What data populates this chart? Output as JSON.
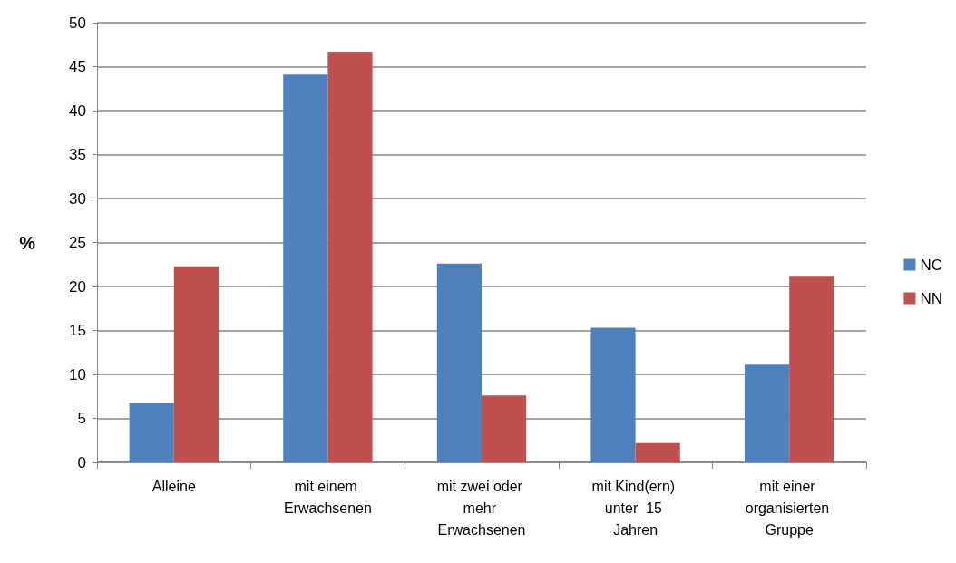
{
  "chart_data": {
    "type": "bar",
    "categories": [
      "Alleine",
      "mit einem Erwachsenen",
      "mit zwei oder mehr Erwachsenen",
      "mit Kind(ern) unter  15 Jahren",
      "mit einer organisierten Gruppe"
    ],
    "series": [
      {
        "name": "NC",
        "color": "#4f81bd",
        "values": [
          6.8,
          44.1,
          22.6,
          15.3,
          11.1
        ]
      },
      {
        "name": "NN",
        "color": "#c0504d",
        "values": [
          22.3,
          46.7,
          7.6,
          2.2,
          21.2
        ]
      }
    ],
    "ylabel": "%",
    "ylim": [
      0,
      50
    ],
    "yticks": [
      0,
      5,
      10,
      15,
      20,
      25,
      30,
      35,
      40,
      45,
      50
    ],
    "grid": "y",
    "legend": "right"
  }
}
